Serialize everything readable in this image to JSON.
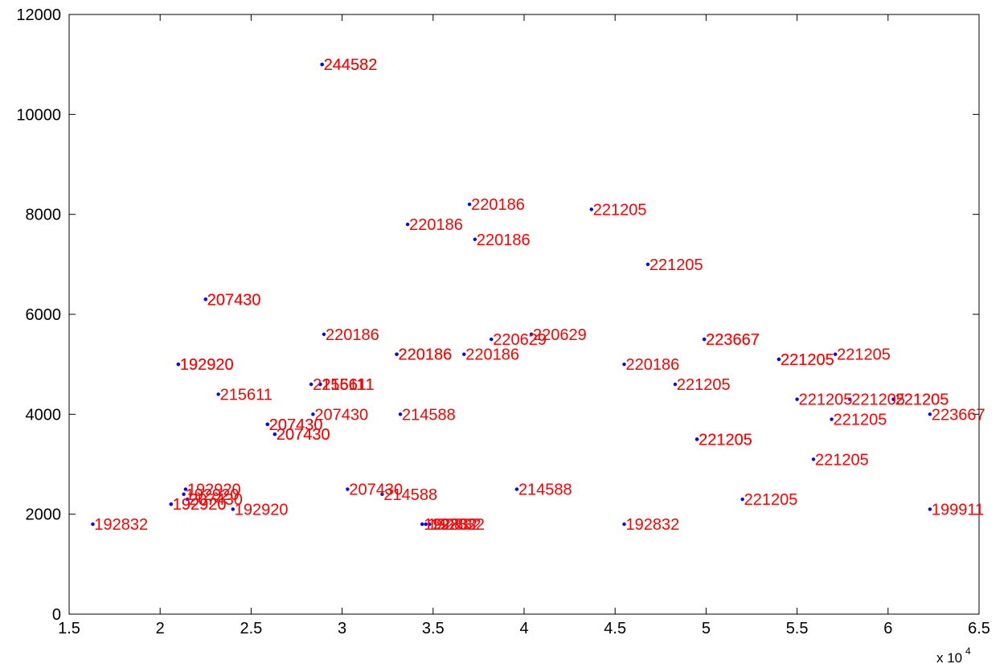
{
  "chart_data": {
    "type": "scatter",
    "title": "",
    "xlabel": "",
    "ylabel": "",
    "xlim": [
      15000,
      65000
    ],
    "ylim": [
      0,
      12000
    ],
    "x_ticks": [
      15000,
      20000,
      25000,
      30000,
      35000,
      40000,
      45000,
      50000,
      55000,
      60000,
      65000
    ],
    "x_tick_labels": [
      "1.5",
      "2",
      "2.5",
      "3",
      "3.5",
      "4",
      "4.5",
      "5",
      "5.5",
      "6",
      "6.5"
    ],
    "y_ticks": [
      0,
      2000,
      4000,
      6000,
      8000,
      10000,
      12000
    ],
    "y_tick_labels": [
      "0",
      "2000",
      "4000",
      "6000",
      "8000",
      "10000",
      "12000"
    ],
    "x_multiplier_base": "x 10",
    "x_multiplier_exp": "4",
    "grid": false,
    "marker_color": "#0000ff",
    "label_color": "#ff0000",
    "points": [
      {
        "x": 28900,
        "y": 11000,
        "label": "244582"
      },
      {
        "x": 28900,
        "y": 11000,
        "label": "244582"
      },
      {
        "x": 37000,
        "y": 8200,
        "label": "220186"
      },
      {
        "x": 33600,
        "y": 7800,
        "label": "220186"
      },
      {
        "x": 37300,
        "y": 7500,
        "label": "220186"
      },
      {
        "x": 43700,
        "y": 8100,
        "label": "221205"
      },
      {
        "x": 46800,
        "y": 7000,
        "label": "221205"
      },
      {
        "x": 22500,
        "y": 6300,
        "label": "207430"
      },
      {
        "x": 22500,
        "y": 6300,
        "label": "207430"
      },
      {
        "x": 29000,
        "y": 5600,
        "label": "220186"
      },
      {
        "x": 38200,
        "y": 5500,
        "label": "220629"
      },
      {
        "x": 40400,
        "y": 5600,
        "label": "220629"
      },
      {
        "x": 33000,
        "y": 5200,
        "label": "220186"
      },
      {
        "x": 33000,
        "y": 5200,
        "label": "220186"
      },
      {
        "x": 36700,
        "y": 5200,
        "label": "220186"
      },
      {
        "x": 21000,
        "y": 5000,
        "label": "192920"
      },
      {
        "x": 21000,
        "y": 5000,
        "label": "192920"
      },
      {
        "x": 23200,
        "y": 4400,
        "label": "215611"
      },
      {
        "x": 28300,
        "y": 4600,
        "label": "215611"
      },
      {
        "x": 28800,
        "y": 4600,
        "label": "215611"
      },
      {
        "x": 28800,
        "y": 4600,
        "label": "215611"
      },
      {
        "x": 28400,
        "y": 4000,
        "label": "207430"
      },
      {
        "x": 33200,
        "y": 4000,
        "label": "214588"
      },
      {
        "x": 25900,
        "y": 3800,
        "label": "207430"
      },
      {
        "x": 25900,
        "y": 3800,
        "label": "207430"
      },
      {
        "x": 26300,
        "y": 3600,
        "label": "207430"
      },
      {
        "x": 26300,
        "y": 3600,
        "label": "207430"
      },
      {
        "x": 49900,
        "y": 5500,
        "label": "223667"
      },
      {
        "x": 49900,
        "y": 5500,
        "label": "223667"
      },
      {
        "x": 45500,
        "y": 5000,
        "label": "220186"
      },
      {
        "x": 48300,
        "y": 4600,
        "label": "221205"
      },
      {
        "x": 54000,
        "y": 5100,
        "label": "221205"
      },
      {
        "x": 54000,
        "y": 5100,
        "label": "221205"
      },
      {
        "x": 57100,
        "y": 5200,
        "label": "221205"
      },
      {
        "x": 55000,
        "y": 4300,
        "label": "221205"
      },
      {
        "x": 57900,
        "y": 4300,
        "label": "221205"
      },
      {
        "x": 60300,
        "y": 4300,
        "label": "221205"
      },
      {
        "x": 60300,
        "y": 4300,
        "label": "221205"
      },
      {
        "x": 56900,
        "y": 3900,
        "label": "221205"
      },
      {
        "x": 62300,
        "y": 4000,
        "label": "223667"
      },
      {
        "x": 49500,
        "y": 3500,
        "label": "221205"
      },
      {
        "x": 49500,
        "y": 3500,
        "label": "221205"
      },
      {
        "x": 55900,
        "y": 3100,
        "label": "221205"
      },
      {
        "x": 52000,
        "y": 2300,
        "label": "221205"
      },
      {
        "x": 62300,
        "y": 2100,
        "label": "199911"
      },
      {
        "x": 21400,
        "y": 2500,
        "label": "192920"
      },
      {
        "x": 21300,
        "y": 2400,
        "label": "192920"
      },
      {
        "x": 21500,
        "y": 2300,
        "label": "207430"
      },
      {
        "x": 20600,
        "y": 2200,
        "label": "192920"
      },
      {
        "x": 20600,
        "y": 2200,
        "label": "192920"
      },
      {
        "x": 24000,
        "y": 2100,
        "label": "192920"
      },
      {
        "x": 16300,
        "y": 1800,
        "label": "192832"
      },
      {
        "x": 30300,
        "y": 2500,
        "label": "207430"
      },
      {
        "x": 32200,
        "y": 2400,
        "label": "214588"
      },
      {
        "x": 34400,
        "y": 1800,
        "label": "192832"
      },
      {
        "x": 34600,
        "y": 1800,
        "label": "192832"
      },
      {
        "x": 34800,
        "y": 1800,
        "label": "192832"
      },
      {
        "x": 39600,
        "y": 2500,
        "label": "214588"
      },
      {
        "x": 45500,
        "y": 1800,
        "label": "192832"
      }
    ]
  }
}
